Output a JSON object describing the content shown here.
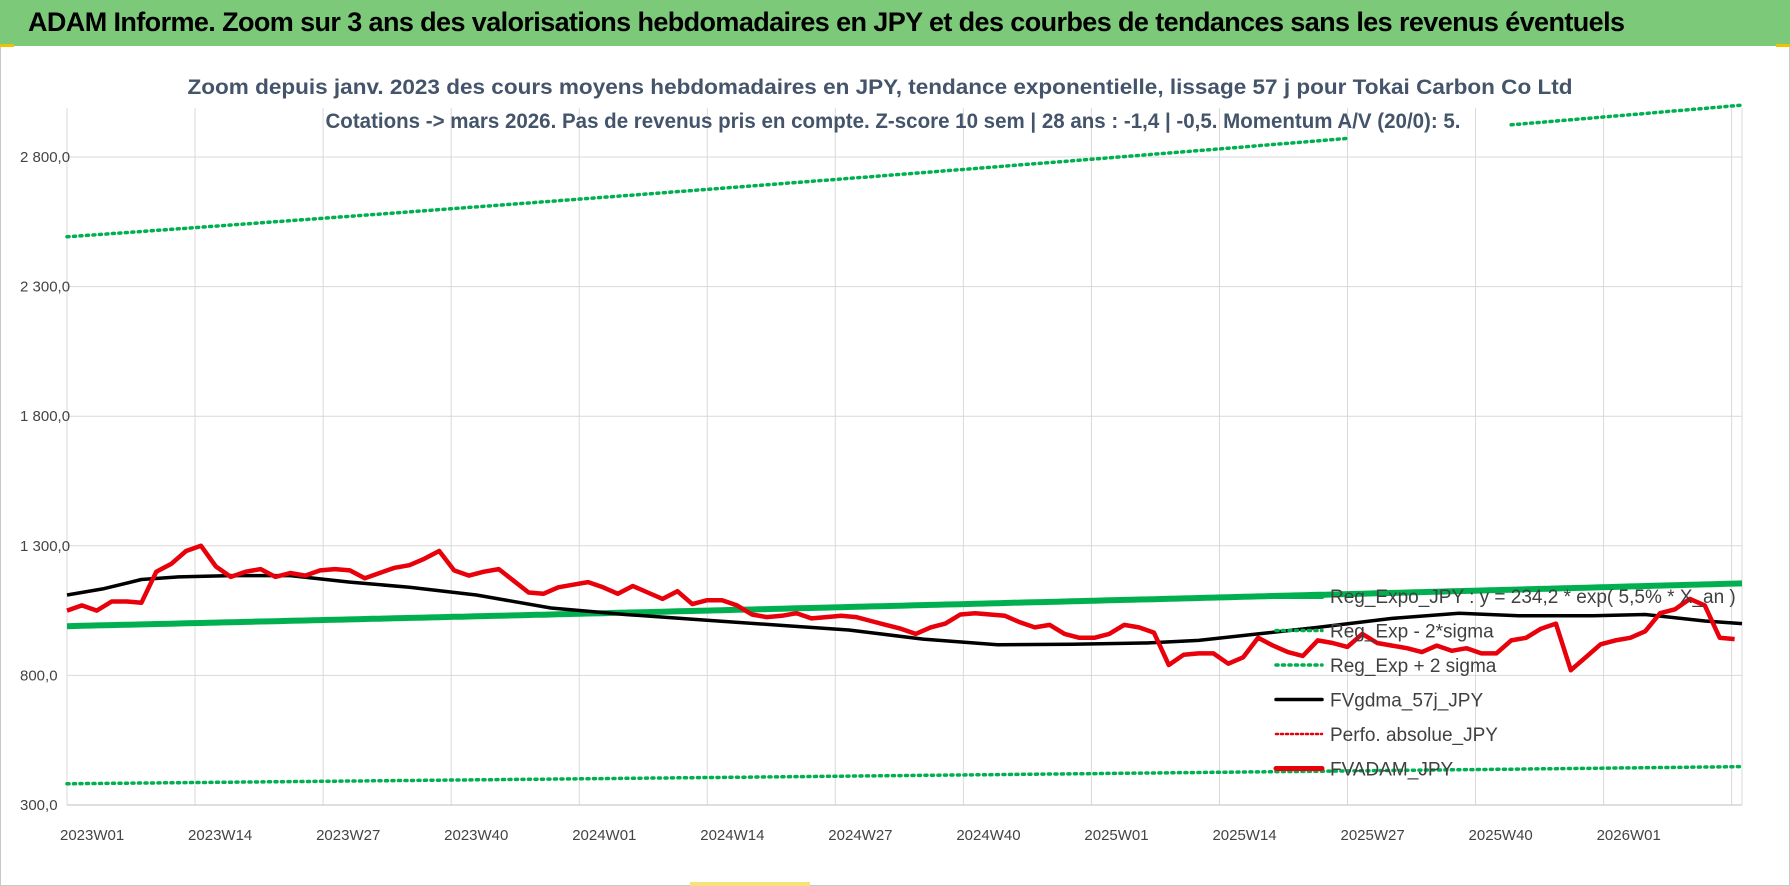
{
  "header": {
    "title": "ADAM Informe. Zoom sur 3 ans des valorisations hebdomadaires en JPY et des courbes de tendances sans les revenus éventuels"
  },
  "colors": {
    "header_bg": "#7dc97a",
    "trend": "#00b050",
    "sigma": "#00b050",
    "gdma": "#000000",
    "perfo": "#e8000b",
    "adam": "#e8000b",
    "grid": "#d9d9d9"
  },
  "chart_data": {
    "type": "line",
    "title_line1": "Zoom depuis janv. 2023 des cours moyens hebdomadaires en JPY, tendance exponentielle, lissage 57 j pour Tokai Carbon Co Ltd",
    "title_line2": "Cotations -> mars 2026. Pas de revenus pris en compte. Z-score 10 sem | 28 ans : -1,4 | -0,5. Momentum A/V (20/0): 5.",
    "x_tick_labels": [
      "2023W01",
      "2023W14",
      "2023W27",
      "2023W40",
      "2024W01",
      "2024W14",
      "2024W27",
      "2024W40",
      "2025W01",
      "2025W14",
      "2025W27",
      "2025W40",
      "2026W01"
    ],
    "y_tick_labels": [
      "300,0",
      "800,0",
      "1 300,0",
      "1 800,0",
      "2 300,0",
      "2 800,0"
    ],
    "y_ticks": [
      300,
      800,
      1300,
      1800,
      2300,
      2800
    ],
    "ylim": [
      300,
      3000
    ],
    "x_count": 169,
    "legend": [
      {
        "label": "Reg_Expo_JPY : y = 234,2 * exp( 5,5% * X_an )",
        "style": "solid-green-thick"
      },
      {
        "label": "Reg_Exp - 2*sigma",
        "style": "dotted-green"
      },
      {
        "label": "Reg_Exp + 2 sigma",
        "style": "dotted-green"
      },
      {
        "label": "FVgdma_57j_JPY",
        "style": "solid-black"
      },
      {
        "label": "Perfo. absolue_JPY",
        "style": "dotted-red"
      },
      {
        "label": "FVADAM_JPY",
        "style": "solid-red-thick"
      }
    ],
    "series": [
      {
        "name": "Reg_Expo_JPY",
        "start": 990,
        "end": 1155
      },
      {
        "name": "Reg_Exp - 2*sigma",
        "start": 382,
        "end": 448
      },
      {
        "name": "Reg_Exp + 2 sigma",
        "start": 2492,
        "end": 3000
      },
      {
        "name": "FVgdma_57j_JPY",
        "keypoints": [
          [
            0,
            1110
          ],
          [
            5,
            1135
          ],
          [
            10,
            1170
          ],
          [
            15,
            1180
          ],
          [
            22,
            1185
          ],
          [
            30,
            1185
          ],
          [
            38,
            1160
          ],
          [
            46,
            1140
          ],
          [
            55,
            1110
          ],
          [
            65,
            1060
          ],
          [
            75,
            1035
          ],
          [
            85,
            1015
          ],
          [
            95,
            995
          ],
          [
            105,
            975
          ],
          [
            115,
            940
          ],
          [
            125,
            918
          ],
          [
            135,
            920
          ],
          [
            145,
            925
          ],
          [
            152,
            935
          ],
          [
            160,
            960
          ],
          [
            168,
            985
          ],
          [
            178,
            1020
          ],
          [
            187,
            1040
          ],
          [
            195,
            1030
          ],
          [
            205,
            1030
          ],
          [
            212,
            1035
          ],
          [
            220,
            1010
          ],
          [
            225,
            1000
          ]
        ]
      },
      {
        "name": "FVADAM_JPY",
        "keypoints": [
          [
            0,
            1050
          ],
          [
            2,
            1070
          ],
          [
            4,
            1050
          ],
          [
            6,
            1085
          ],
          [
            8,
            1085
          ],
          [
            10,
            1080
          ],
          [
            12,
            1200
          ],
          [
            14,
            1230
          ],
          [
            16,
            1280
          ],
          [
            18,
            1300
          ],
          [
            20,
            1220
          ],
          [
            22,
            1180
          ],
          [
            24,
            1200
          ],
          [
            26,
            1210
          ],
          [
            28,
            1180
          ],
          [
            30,
            1195
          ],
          [
            32,
            1185
          ],
          [
            34,
            1205
          ],
          [
            36,
            1210
          ],
          [
            38,
            1205
          ],
          [
            40,
            1175
          ],
          [
            42,
            1195
          ],
          [
            44,
            1215
          ],
          [
            46,
            1225
          ],
          [
            48,
            1250
          ],
          [
            50,
            1280
          ],
          [
            52,
            1205
          ],
          [
            54,
            1185
          ],
          [
            56,
            1200
          ],
          [
            58,
            1210
          ],
          [
            60,
            1165
          ],
          [
            62,
            1120
          ],
          [
            64,
            1115
          ],
          [
            66,
            1140
          ],
          [
            68,
            1150
          ],
          [
            70,
            1160
          ],
          [
            72,
            1140
          ],
          [
            74,
            1115
          ],
          [
            76,
            1145
          ],
          [
            78,
            1120
          ],
          [
            80,
            1095
          ],
          [
            82,
            1125
          ],
          [
            84,
            1075
          ],
          [
            86,
            1090
          ],
          [
            88,
            1090
          ],
          [
            90,
            1070
          ],
          [
            92,
            1035
          ],
          [
            94,
            1025
          ],
          [
            96,
            1030
          ],
          [
            98,
            1040
          ],
          [
            100,
            1020
          ],
          [
            102,
            1025
          ],
          [
            104,
            1030
          ],
          [
            106,
            1025
          ],
          [
            108,
            1010
          ],
          [
            110,
            995
          ],
          [
            112,
            980
          ],
          [
            114,
            960
          ],
          [
            116,
            985
          ],
          [
            118,
            1000
          ],
          [
            120,
            1035
          ],
          [
            122,
            1040
          ],
          [
            124,
            1035
          ],
          [
            126,
            1030
          ],
          [
            128,
            1005
          ],
          [
            130,
            985
          ],
          [
            132,
            995
          ],
          [
            134,
            960
          ],
          [
            136,
            945
          ],
          [
            138,
            945
          ],
          [
            140,
            960
          ],
          [
            142,
            995
          ],
          [
            144,
            985
          ],
          [
            146,
            965
          ],
          [
            148,
            840
          ],
          [
            150,
            880
          ],
          [
            152,
            885
          ],
          [
            154,
            885
          ],
          [
            156,
            845
          ],
          [
            158,
            870
          ],
          [
            160,
            945
          ],
          [
            162,
            915
          ],
          [
            164,
            890
          ],
          [
            166,
            875
          ],
          [
            168,
            935
          ],
          [
            170,
            925
          ],
          [
            172,
            910
          ],
          [
            174,
            960
          ],
          [
            176,
            925
          ],
          [
            178,
            915
          ],
          [
            180,
            905
          ],
          [
            182,
            890
          ],
          [
            184,
            915
          ],
          [
            186,
            895
          ],
          [
            188,
            905
          ],
          [
            190,
            885
          ],
          [
            192,
            885
          ],
          [
            194,
            935
          ],
          [
            196,
            945
          ],
          [
            198,
            980
          ],
          [
            200,
            1000
          ],
          [
            202,
            820
          ],
          [
            204,
            870
          ],
          [
            206,
            920
          ],
          [
            208,
            935
          ],
          [
            210,
            945
          ],
          [
            212,
            970
          ],
          [
            214,
            1040
          ],
          [
            216,
            1055
          ],
          [
            218,
            1095
          ],
          [
            220,
            1070
          ],
          [
            222,
            945
          ],
          [
            224,
            940
          ]
        ]
      }
    ]
  }
}
